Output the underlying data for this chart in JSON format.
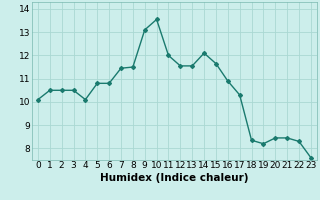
{
  "x": [
    0,
    1,
    2,
    3,
    4,
    5,
    6,
    7,
    8,
    9,
    10,
    11,
    12,
    13,
    14,
    15,
    16,
    17,
    18,
    19,
    20,
    21,
    22,
    23
  ],
  "y": [
    10.1,
    10.5,
    10.5,
    10.5,
    10.1,
    10.8,
    10.8,
    11.45,
    11.5,
    13.1,
    13.55,
    12.0,
    11.55,
    11.55,
    12.1,
    11.65,
    10.9,
    10.3,
    8.35,
    8.2,
    8.45,
    8.45,
    8.3,
    7.6
  ],
  "line_color": "#1a7a6e",
  "marker": "D",
  "marker_size": 2.0,
  "bg_color": "#cceeeb",
  "grid_color": "#aad8d3",
  "xlabel": "Humidex (Indice chaleur)",
  "ylim": [
    7.5,
    14.3
  ],
  "xlim": [
    -0.5,
    23.5
  ],
  "yticks": [
    8,
    9,
    10,
    11,
    12,
    13,
    14
  ],
  "xticks": [
    0,
    1,
    2,
    3,
    4,
    5,
    6,
    7,
    8,
    9,
    10,
    11,
    12,
    13,
    14,
    15,
    16,
    17,
    18,
    19,
    20,
    21,
    22,
    23
  ],
  "tick_fontsize": 6.5,
  "xlabel_fontsize": 7.5,
  "line_width": 1.0
}
